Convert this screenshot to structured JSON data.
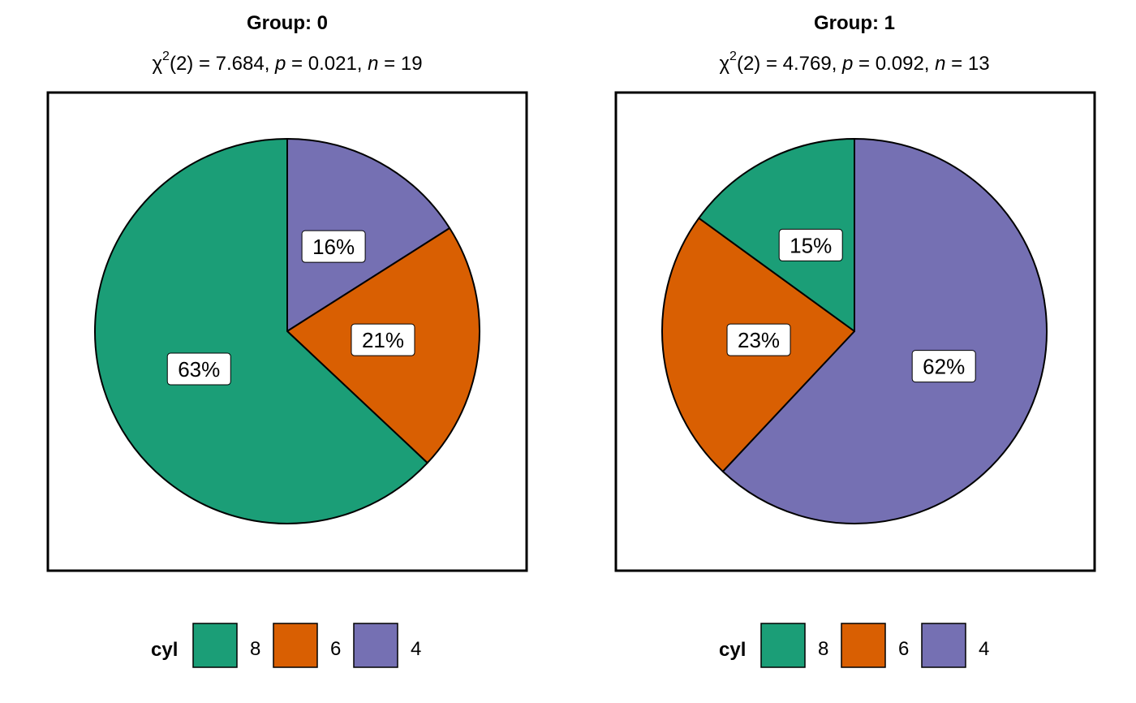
{
  "chart_data": [
    {
      "type": "pie",
      "title": "Group: 0",
      "subtitle": {
        "chi_symbol": "χ",
        "chi_superscript": "2",
        "chi_df": "(2) = 7.684, ",
        "p_symbol": "p",
        "p_value": " = 0.021, ",
        "n_symbol": "n",
        "n_value": " = 19"
      },
      "slices": [
        {
          "category": "4",
          "value": 16,
          "label": "16%",
          "color": "#7570B3"
        },
        {
          "category": "6",
          "value": 21,
          "label": "21%",
          "color": "#D95F02"
        },
        {
          "category": "8",
          "value": 63,
          "label": "63%",
          "color": "#1B9E77"
        }
      ],
      "legend": {
        "title": "cyl",
        "placement": "bottom",
        "entries": [
          {
            "label": "8",
            "color": "#1B9E77"
          },
          {
            "label": "6",
            "color": "#D95F02"
          },
          {
            "label": "4",
            "color": "#7570B3"
          }
        ]
      }
    },
    {
      "type": "pie",
      "title": "Group: 1",
      "subtitle": {
        "chi_symbol": "χ",
        "chi_superscript": "2",
        "chi_df": "(2) = 4.769, ",
        "p_symbol": "p",
        "p_value": " = 0.092, ",
        "n_symbol": "n",
        "n_value": " = 13"
      },
      "slices": [
        {
          "category": "4",
          "value": 62,
          "label": "62%",
          "color": "#7570B3"
        },
        {
          "category": "6",
          "value": 23,
          "label": "23%",
          "color": "#D95F02"
        },
        {
          "category": "8",
          "value": 15,
          "label": "15%",
          "color": "#1B9E77"
        }
      ],
      "legend": {
        "title": "cyl",
        "placement": "bottom",
        "entries": [
          {
            "label": "8",
            "color": "#1B9E77"
          },
          {
            "label": "6",
            "color": "#D95F02"
          },
          {
            "label": "4",
            "color": "#7570B3"
          }
        ]
      }
    }
  ]
}
